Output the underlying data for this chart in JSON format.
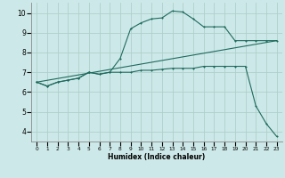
{
  "xlabel": "Humidex (Indice chaleur)",
  "background_color": "#cde8e8",
  "grid_color": "#aed0cc",
  "line_color": "#1e6b5e",
  "xlim": [
    -0.5,
    23.5
  ],
  "ylim": [
    3.5,
    10.5
  ],
  "xticks": [
    0,
    1,
    2,
    3,
    4,
    5,
    6,
    7,
    8,
    9,
    10,
    11,
    12,
    13,
    14,
    15,
    16,
    17,
    18,
    19,
    20,
    21,
    22,
    23
  ],
  "yticks": [
    4,
    5,
    6,
    7,
    8,
    9,
    10
  ],
  "line1_x": [
    0,
    1,
    2,
    3,
    4,
    5,
    6,
    7,
    8,
    9,
    10,
    11,
    12,
    13,
    14,
    15,
    16,
    17,
    18,
    19,
    20,
    21,
    22,
    23
  ],
  "line1_y": [
    6.5,
    6.3,
    6.5,
    6.6,
    6.7,
    7.0,
    6.9,
    7.0,
    7.7,
    9.2,
    9.5,
    9.7,
    9.75,
    10.1,
    10.05,
    9.7,
    9.3,
    9.3,
    9.3,
    8.6,
    8.6,
    8.6,
    8.6,
    8.6
  ],
  "line2_x": [
    0,
    1,
    2,
    3,
    4,
    5,
    6,
    7,
    8,
    9,
    10,
    11,
    12,
    13,
    14,
    15,
    16,
    17,
    18,
    19,
    20,
    21,
    22,
    23
  ],
  "line2_y": [
    6.5,
    6.3,
    6.5,
    6.6,
    6.7,
    7.0,
    6.9,
    7.0,
    7.0,
    7.0,
    7.1,
    7.1,
    7.15,
    7.2,
    7.2,
    7.2,
    7.3,
    7.3,
    7.3,
    7.3,
    7.3,
    5.3,
    4.4,
    3.75
  ],
  "line3_x": [
    0,
    23
  ],
  "line3_y": [
    6.5,
    8.6
  ]
}
